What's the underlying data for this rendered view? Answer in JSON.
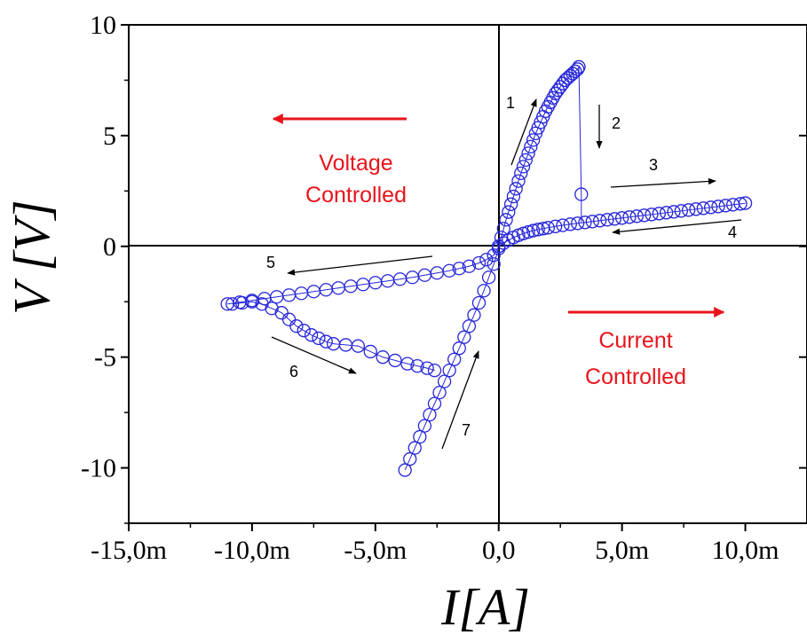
{
  "chart_data": {
    "type": "scatter",
    "xlabel": "I[A]",
    "ylabel": "V [V]",
    "xlim": [
      -0.015,
      0.0125
    ],
    "ylim": [
      -12.5,
      10
    ],
    "xticks": [
      -0.015,
      -0.01,
      -0.005,
      0,
      0.005,
      0.01
    ],
    "xtick_labels": [
      "-15,0m",
      "-10,0m",
      "-5,0m",
      "0,0",
      "5,0m",
      "10,0m"
    ],
    "yticks": [
      -10,
      -5,
      0,
      5,
      10
    ],
    "ytick_labels": [
      "-10",
      "-5",
      "0",
      "5",
      "10"
    ],
    "marker": "open-circle",
    "marker_color": "#2626d9",
    "grid": false,
    "annotations": {
      "branch_numbers": [
        "1",
        "2",
        "3",
        "4",
        "5",
        "6",
        "7"
      ],
      "voltage_controlled": [
        "Voltage",
        "Controlled"
      ],
      "current_controlled": [
        "Current",
        "Controlled"
      ],
      "annotation_color": "#e8141b"
    },
    "series": [
      {
        "segment": "1",
        "x": [
          0,
          0.0001,
          0.0002,
          0.0003,
          0.0004,
          0.0005,
          0.0006,
          0.0007,
          0.0008,
          0.0009,
          0.001,
          0.0011,
          0.0012,
          0.0013,
          0.0014,
          0.0015,
          0.0016,
          0.0017,
          0.0018,
          0.0019,
          0.002,
          0.0021,
          0.0022,
          0.0023,
          0.0024,
          0.0025,
          0.0026,
          0.0027,
          0.0028,
          0.0029,
          0.003,
          0.0031,
          0.0032,
          0.00325
        ],
        "y": [
          0,
          0.4,
          0.8,
          1.2,
          1.55,
          1.9,
          2.25,
          2.6,
          2.95,
          3.3,
          3.6,
          3.9,
          4.2,
          4.5,
          4.8,
          5.1,
          5.35,
          5.6,
          5.85,
          6.1,
          6.3,
          6.5,
          6.7,
          6.9,
          7.05,
          7.2,
          7.35,
          7.5,
          7.6,
          7.7,
          7.8,
          7.9,
          8.0,
          8.1
        ]
      },
      {
        "segment": "2",
        "x": [
          0.00335
        ],
        "y": [
          2.35
        ]
      },
      {
        "segment": "3-4",
        "x": [
          0,
          0.0002,
          0.0004,
          0.0006,
          0.0008,
          0.001,
          0.0012,
          0.0014,
          0.0016,
          0.0018,
          0.002,
          0.0023,
          0.0026,
          0.0029,
          0.0032,
          0.0035,
          0.0038,
          0.0041,
          0.0044,
          0.0047,
          0.005,
          0.0053,
          0.0056,
          0.0059,
          0.0062,
          0.0065,
          0.0068,
          0.0071,
          0.0074,
          0.0077,
          0.008,
          0.0083,
          0.0086,
          0.0089,
          0.0092,
          0.0095,
          0.0098,
          0.01
        ],
        "y": [
          0,
          0.15,
          0.28,
          0.4,
          0.5,
          0.58,
          0.65,
          0.71,
          0.76,
          0.8,
          0.84,
          0.9,
          0.95,
          1.0,
          1.04,
          1.08,
          1.12,
          1.16,
          1.2,
          1.24,
          1.28,
          1.32,
          1.36,
          1.4,
          1.44,
          1.48,
          1.52,
          1.56,
          1.6,
          1.64,
          1.68,
          1.72,
          1.76,
          1.8,
          1.84,
          1.88,
          1.92,
          1.95
        ]
      },
      {
        "segment": "5",
        "x": [
          0,
          -0.0002,
          -0.0005,
          -0.0008,
          -0.0012,
          -0.0016,
          -0.002,
          -0.0025,
          -0.003,
          -0.0035,
          -0.004,
          -0.0045,
          -0.005,
          -0.0055,
          -0.006,
          -0.0065,
          -0.007,
          -0.0075,
          -0.008,
          -0.0085,
          -0.009,
          -0.0095,
          -0.01,
          -0.0105,
          -0.011
        ],
        "y": [
          0,
          -0.4,
          -0.6,
          -0.75,
          -0.9,
          -1.0,
          -1.1,
          -1.2,
          -1.3,
          -1.4,
          -1.48,
          -1.56,
          -1.64,
          -1.72,
          -1.8,
          -1.88,
          -1.96,
          -2.04,
          -2.12,
          -2.2,
          -2.28,
          -2.36,
          -2.44,
          -2.52,
          -2.6
        ]
      },
      {
        "segment": "6",
        "x": [
          -0.0108,
          -0.0104,
          -0.01,
          -0.0096,
          -0.0092,
          -0.0088,
          -0.0085,
          -0.0082,
          -0.0079,
          -0.0076,
          -0.0073,
          -0.007,
          -0.0067,
          -0.0062,
          -0.0057,
          -0.0052,
          -0.0047,
          -0.0042,
          -0.0037,
          -0.0033,
          -0.0029,
          -0.0026
        ],
        "y": [
          -2.6,
          -2.55,
          -2.5,
          -2.6,
          -2.8,
          -3.0,
          -3.3,
          -3.6,
          -3.8,
          -4.0,
          -4.15,
          -4.3,
          -4.4,
          -4.45,
          -4.5,
          -4.75,
          -5.0,
          -5.15,
          -5.3,
          -5.4,
          -5.5,
          -5.6
        ]
      },
      {
        "segment": "7",
        "x": [
          -0.0038,
          -0.0036,
          -0.0034,
          -0.0032,
          -0.003,
          -0.0028,
          -0.0026,
          -0.0024,
          -0.0022,
          -0.002,
          -0.0018,
          -0.0016,
          -0.0014,
          -0.0012,
          -0.001,
          -0.0008,
          -0.0006,
          -0.0004,
          -0.0002,
          0
        ],
        "y": [
          -10.1,
          -9.6,
          -9.1,
          -8.6,
          -8.1,
          -7.6,
          -7.1,
          -6.6,
          -6.1,
          -5.6,
          -5.1,
          -4.6,
          -4.1,
          -3.6,
          -3.1,
          -2.55,
          -2.0,
          -1.4,
          -0.8,
          -0.1
        ]
      }
    ]
  }
}
